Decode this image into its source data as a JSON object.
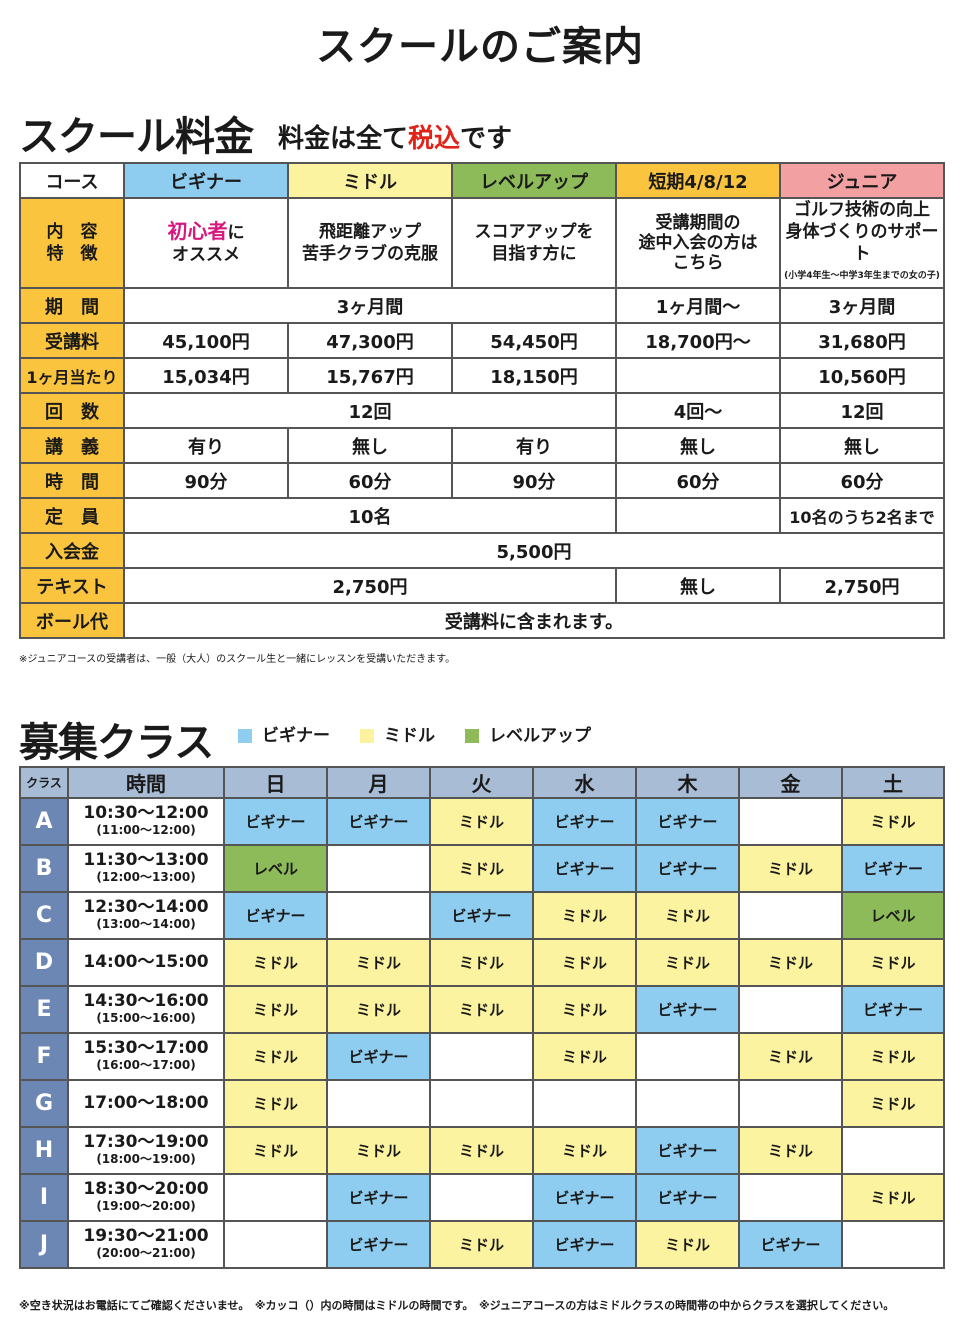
{
  "page_title": "スクールのご案内",
  "fee": {
    "title": "スクール料金",
    "subtitle_pre": "料金は全て",
    "subtitle_red": "税込",
    "subtitle_post": "です",
    "headers": [
      "コース",
      "ビギナー",
      "ミドル",
      "レベルアップ",
      "短期4/8/12",
      "ジュニア"
    ],
    "feature_label": "内　容\n特　徴",
    "features": {
      "beg_pink": "初心者",
      "beg_rest": "に\nオススメ",
      "mid": "飛距離アップ\n苦手クラブの克服",
      "lvl": "スコアアップを\n目指す方に",
      "short": "受講期間の\n途中入会の方は\nこちら",
      "jun": "ゴルフ技術の向上\n身体づくりのサポート",
      "jun_note": "(小学4年生～中学3年生までの女の子)"
    },
    "rows": {
      "period": {
        "label": "期　間",
        "main": "3ヶ月間",
        "short": "1ヶ月間～",
        "jun": "3ヶ月間"
      },
      "fee": {
        "label": "受講料",
        "beg": "45,100円",
        "mid": "47,300円",
        "lvl": "54,450円",
        "short": "18,700円～",
        "jun": "31,680円"
      },
      "monthly": {
        "label": "1ヶ月当たり",
        "beg": "15,034円",
        "mid": "15,767円",
        "lvl": "18,150円",
        "short": "",
        "jun": "10,560円"
      },
      "count": {
        "label": "回　数",
        "main": "12回",
        "short": "4回～",
        "jun": "12回"
      },
      "lecture": {
        "label": "講　義",
        "beg": "有り",
        "mid": "無し",
        "lvl": "有り",
        "short": "無し",
        "jun": "無し"
      },
      "time": {
        "label": "時　間",
        "beg": "90分",
        "mid": "60分",
        "lvl": "90分",
        "short": "60分",
        "jun": "60分"
      },
      "capacity": {
        "label": "定　員",
        "main": "10名",
        "short": "",
        "jun": "10名のうち2名まで"
      },
      "entry": {
        "label": "入会金",
        "all": "5,500円"
      },
      "text": {
        "label": "テキスト",
        "main": "2,750円",
        "short": "無し",
        "jun": "2,750円"
      },
      "ball": {
        "label": "ボール代",
        "all": "受講料に含まれます。"
      }
    },
    "note": "※ジュニアコースの受講者は、一般（大人）のスクール生と一緒にレッスンを受講いただきます。"
  },
  "schedule": {
    "title": "募集クラス",
    "legend": [
      {
        "label": "ビギナー",
        "color": "#8fcdf0"
      },
      {
        "label": "ミドル",
        "color": "#fcf3a0"
      },
      {
        "label": "レベルアップ",
        "color": "#8dbb5a"
      }
    ],
    "headers": [
      "クラス",
      "時間",
      "日",
      "月",
      "火",
      "水",
      "木",
      "金",
      "土"
    ],
    "rows": [
      {
        "cls": "A",
        "time": "10:30～12:00",
        "sub": "(11:00～12:00)",
        "cells": [
          "ビギナー",
          "ビギナー",
          "ミドル",
          "ビギナー",
          "ビギナー",
          "",
          "ミドル"
        ]
      },
      {
        "cls": "B",
        "time": "11:30～13:00",
        "sub": "(12:00～13:00)",
        "cells": [
          "レベル",
          "",
          "ミドル",
          "ビギナー",
          "ビギナー",
          "ミドル",
          "ビギナー"
        ]
      },
      {
        "cls": "C",
        "time": "12:30～14:00",
        "sub": "(13:00～14:00)",
        "cells": [
          "ビギナー",
          "",
          "ビギナー",
          "ミドル",
          "ミドル",
          "",
          "レベル"
        ]
      },
      {
        "cls": "D",
        "time": "14:00～15:00",
        "sub": "",
        "cells": [
          "ミドル",
          "ミドル",
          "ミドル",
          "ミドル",
          "ミドル",
          "ミドル",
          "ミドル"
        ]
      },
      {
        "cls": "E",
        "time": "14:30～16:00",
        "sub": "(15:00～16:00)",
        "cells": [
          "ミドル",
          "ミドル",
          "ミドル",
          "ミドル",
          "ビギナー",
          "",
          "ビギナー"
        ]
      },
      {
        "cls": "F",
        "time": "15:30～17:00",
        "sub": "(16:00～17:00)",
        "cells": [
          "ミドル",
          "ビギナー",
          "",
          "ミドル",
          "",
          "ミドル",
          "ミドル"
        ]
      },
      {
        "cls": "G",
        "time": "17:00～18:00",
        "sub": "",
        "cells": [
          "ミドル",
          "",
          "",
          "",
          "",
          "",
          "ミドル"
        ]
      },
      {
        "cls": "H",
        "time": "17:30～19:00",
        "sub": "(18:00～19:00)",
        "cells": [
          "ミドル",
          "ミドル",
          "ミドル",
          "ミドル",
          "ビギナー",
          "ミドル",
          ""
        ]
      },
      {
        "cls": "I",
        "time": "18:30～20:00",
        "sub": "(19:00～20:00)",
        "cells": [
          "",
          "ビギナー",
          "",
          "ビギナー",
          "ビギナー",
          "",
          "ミドル"
        ]
      },
      {
        "cls": "J",
        "time": "19:30～21:00",
        "sub": "(20:00～21:00)",
        "cells": [
          "",
          "ビギナー",
          "ミドル",
          "ビギナー",
          "ミドル",
          "ビギナー",
          ""
        ]
      }
    ],
    "note": "※空き状況はお電話にてご確認くださいませ。　※カッコ（）内の時間はミドルの時間です。　※ジュニアコースの方はミドルクラスの時間帯の中からクラスを選択してください。"
  }
}
